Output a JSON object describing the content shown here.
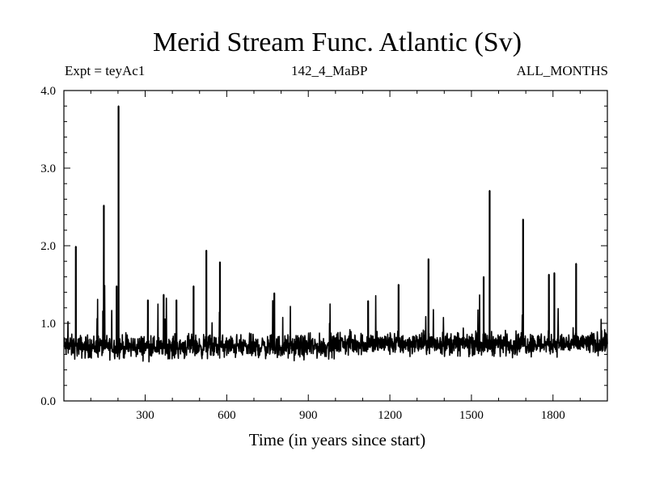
{
  "chart_data": {
    "type": "line",
    "title": "Merid Stream Func. Atlantic (Sv)",
    "subtitle_left": "Expt = teyAc1",
    "subtitle_center": "142_4_MaBP",
    "subtitle_right": "ALL_MONTHS",
    "xlabel": "Time (in years since start)",
    "ylabel": "",
    "xlim": [
      1,
      2000
    ],
    "ylim": [
      0.0,
      4.0
    ],
    "xticks": [
      300,
      600,
      900,
      1200,
      1500,
      1800
    ],
    "yticks": [
      0.0,
      1.0,
      2.0,
      3.0,
      4.0
    ],
    "ytick_labels": [
      "0.0",
      "1.0",
      "2.0",
      "3.0",
      "4.0"
    ],
    "series": [
      {
        "name": "Merid Stream Func. Atlantic",
        "color": "#000000",
        "baseline_mean": 0.7,
        "noise_amplitude": 0.18,
        "spikes": [
          {
            "x": 45,
            "y": 1.99
          },
          {
            "x": 148,
            "y": 2.52
          },
          {
            "x": 145,
            "y": 1.16
          },
          {
            "x": 195,
            "y": 1.48
          },
          {
            "x": 202,
            "y": 3.8
          },
          {
            "x": 310,
            "y": 1.3
          },
          {
            "x": 368,
            "y": 1.37
          },
          {
            "x": 415,
            "y": 1.3
          },
          {
            "x": 478,
            "y": 1.48
          },
          {
            "x": 525,
            "y": 1.94
          },
          {
            "x": 575,
            "y": 1.79
          },
          {
            "x": 775,
            "y": 1.39
          },
          {
            "x": 1120,
            "y": 1.29
          },
          {
            "x": 1232,
            "y": 1.5
          },
          {
            "x": 1342,
            "y": 1.83
          },
          {
            "x": 1545,
            "y": 1.6
          },
          {
            "x": 1567,
            "y": 2.71
          },
          {
            "x": 1690,
            "y": 2.34
          },
          {
            "x": 1785,
            "y": 1.63
          },
          {
            "x": 1805,
            "y": 1.65
          },
          {
            "x": 1885,
            "y": 1.77
          }
        ]
      }
    ]
  }
}
